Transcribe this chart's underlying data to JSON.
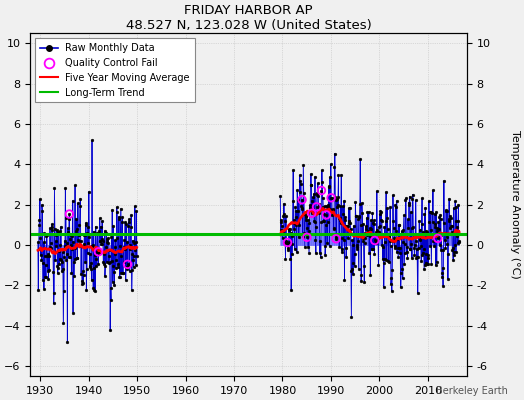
{
  "title": "FRIDAY HARBOR AP",
  "subtitle": "48.527 N, 123.028 W (United States)",
  "ylabel": "Temperature Anomaly (°C)",
  "credit": "Berkeley Earth",
  "xlim": [
    1928,
    2018
  ],
  "ylim": [
    -6.5,
    10.5
  ],
  "yticks": [
    -6,
    -4,
    -2,
    0,
    2,
    4,
    6,
    8,
    10
  ],
  "xticks": [
    1930,
    1940,
    1950,
    1960,
    1970,
    1980,
    1990,
    2000,
    2010
  ],
  "raw_color": "#0000cc",
  "stem_color": "#6666ff",
  "moving_avg_color": "#ff0000",
  "trend_color": "#00bb00",
  "qc_fail_color": "#ff00ff",
  "background_color": "#f0f0f0",
  "seed": 17,
  "period1_start": 1929.5,
  "period1_end": 1950.0,
  "period2_start": 1979.5,
  "period2_end": 2016.5,
  "sparse_start": 1947.0,
  "sparse_end": 1950.0,
  "trend_value": 0.55
}
